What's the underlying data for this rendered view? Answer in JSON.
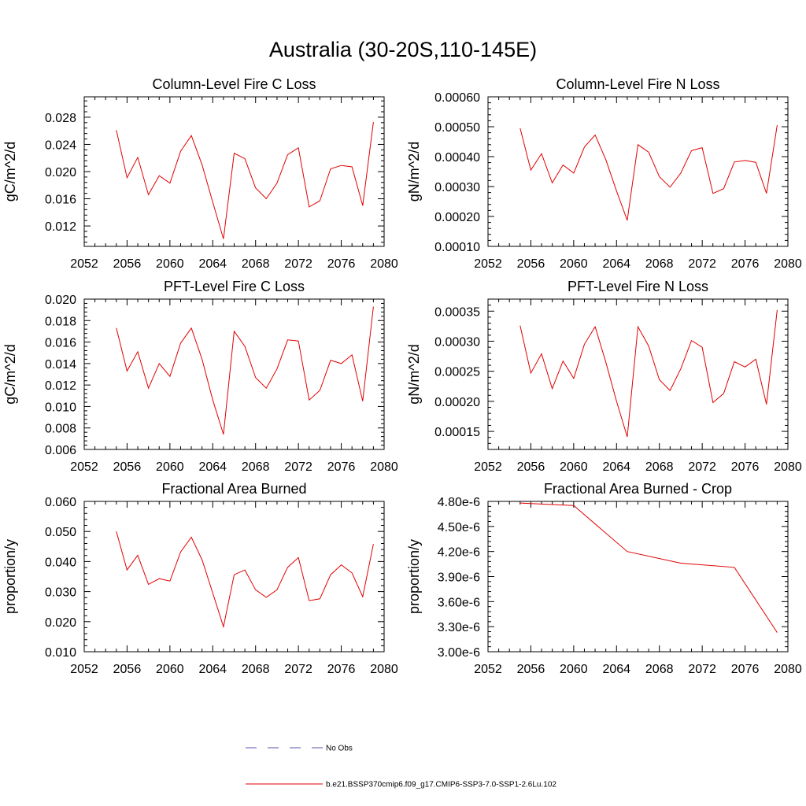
{
  "title": "Australia (30-20S,110-145E)",
  "series_color": "#e00000",
  "legend": {
    "entries": [
      {
        "label": "No Obs",
        "style": "dashed",
        "color": "#5555aa"
      },
      {
        "label": "b.e21.BSSP370cmip6.f09_g17.CMIP6-SSP3-7.0-SSP1-2.6Lu.102",
        "style": "solid",
        "color": "#e00000"
      }
    ]
  },
  "chart_data": [
    {
      "type": "line",
      "title": "Column-Level Fire C Loss",
      "ylabel": "gC/m^2/d",
      "xlim": [
        2052,
        2080
      ],
      "ylim": [
        0.009,
        0.031
      ],
      "xticks": [
        2052,
        2056,
        2060,
        2064,
        2068,
        2072,
        2076,
        2080
      ],
      "yticks": [
        0.012,
        0.016,
        0.02,
        0.024,
        0.028
      ],
      "ytick_labels": [
        "0.012",
        "0.016",
        "0.020",
        "0.024",
        "0.028"
      ],
      "x": [
        2055,
        2056,
        2057,
        2058,
        2059,
        2060,
        2061,
        2062,
        2063,
        2064,
        2065,
        2066,
        2067,
        2068,
        2069,
        2070,
        2071,
        2072,
        2073,
        2074,
        2075,
        2076,
        2077,
        2078,
        2079
      ],
      "series": [
        {
          "values": [
            0.0261,
            0.0191,
            0.0221,
            0.0166,
            0.0194,
            0.0183,
            0.023,
            0.0253,
            0.021,
            0.0155,
            0.0101,
            0.0227,
            0.0219,
            0.0176,
            0.016,
            0.0183,
            0.0225,
            0.0235,
            0.0148,
            0.0157,
            0.0204,
            0.0209,
            0.0207,
            0.015,
            0.0273
          ]
        }
      ]
    },
    {
      "type": "line",
      "title": "Column-Level Fire N Loss",
      "ylabel": "gN/m^2/d",
      "xlim": [
        2052,
        2080
      ],
      "ylim": [
        0.0001,
        0.0006
      ],
      "xticks": [
        2052,
        2056,
        2060,
        2064,
        2068,
        2072,
        2076,
        2080
      ],
      "yticks": [
        0.0001,
        0.0002,
        0.0003,
        0.0004,
        0.0005,
        0.0006
      ],
      "ytick_labels": [
        "0.00010",
        "0.00020",
        "0.00030",
        "0.00040",
        "0.00050",
        "0.00060"
      ],
      "x": [
        2055,
        2056,
        2057,
        2058,
        2059,
        2060,
        2061,
        2062,
        2063,
        2064,
        2065,
        2066,
        2067,
        2068,
        2069,
        2070,
        2071,
        2072,
        2073,
        2074,
        2075,
        2076,
        2077,
        2078,
        2079
      ],
      "series": [
        {
          "values": [
            0.000495,
            0.000355,
            0.00041,
            0.000312,
            0.000372,
            0.000345,
            0.000432,
            0.000472,
            0.00039,
            0.000285,
            0.000187,
            0.00044,
            0.000415,
            0.000333,
            0.000298,
            0.000345,
            0.00042,
            0.00043,
            0.000277,
            0.000293,
            0.000382,
            0.000387,
            0.000381,
            0.000277,
            0.000505
          ]
        }
      ]
    },
    {
      "type": "line",
      "title": "PFT-Level Fire C Loss",
      "ylabel": "gC/m^2/d",
      "xlim": [
        2052,
        2080
      ],
      "ylim": [
        0.006,
        0.02
      ],
      "xticks": [
        2052,
        2056,
        2060,
        2064,
        2068,
        2072,
        2076,
        2080
      ],
      "yticks": [
        0.006,
        0.008,
        0.01,
        0.012,
        0.014,
        0.016,
        0.018,
        0.02
      ],
      "ytick_labels": [
        "0.006",
        "0.008",
        "0.010",
        "0.012",
        "0.014",
        "0.016",
        "0.018",
        "0.020"
      ],
      "x": [
        2055,
        2056,
        2057,
        2058,
        2059,
        2060,
        2061,
        2062,
        2063,
        2064,
        2065,
        2066,
        2067,
        2068,
        2069,
        2070,
        2071,
        2072,
        2073,
        2074,
        2075,
        2076,
        2077,
        2078,
        2079
      ],
      "series": [
        {
          "values": [
            0.0173,
            0.0133,
            0.0151,
            0.0117,
            0.014,
            0.0128,
            0.0159,
            0.0173,
            0.0144,
            0.0106,
            0.0074,
            0.017,
            0.0156,
            0.0127,
            0.0117,
            0.0135,
            0.0162,
            0.0161,
            0.0106,
            0.0115,
            0.0143,
            0.014,
            0.0148,
            0.0105,
            0.0193
          ]
        }
      ]
    },
    {
      "type": "line",
      "title": "PFT-Level Fire N Loss",
      "ylabel": "gN/m^2/d",
      "xlim": [
        2052,
        2080
      ],
      "ylim": [
        0.00012,
        0.00037
      ],
      "xticks": [
        2052,
        2056,
        2060,
        2064,
        2068,
        2072,
        2076,
        2080
      ],
      "yticks": [
        0.00015,
        0.0002,
        0.00025,
        0.0003,
        0.00035
      ],
      "ytick_labels": [
        "0.00015",
        "0.00020",
        "0.00025",
        "0.00030",
        "0.00035"
      ],
      "x": [
        2055,
        2056,
        2057,
        2058,
        2059,
        2060,
        2061,
        2062,
        2063,
        2064,
        2065,
        2066,
        2067,
        2068,
        2069,
        2070,
        2071,
        2072,
        2073,
        2074,
        2075,
        2076,
        2077,
        2078,
        2079
      ],
      "series": [
        {
          "values": [
            0.000326,
            0.000247,
            0.000279,
            0.000221,
            0.000267,
            0.000238,
            0.000295,
            0.000324,
            0.000265,
            0.0002,
            0.000141,
            0.000324,
            0.000292,
            0.000236,
            0.000218,
            0.000254,
            0.000301,
            0.00029,
            0.000198,
            0.000213,
            0.000266,
            0.000257,
            0.00027,
            0.000195,
            0.000352
          ]
        }
      ]
    },
    {
      "type": "line",
      "title": "Fractional Area Burned",
      "ylabel": "proportion/y",
      "xlim": [
        2052,
        2080
      ],
      "ylim": [
        0.01,
        0.06
      ],
      "xticks": [
        2052,
        2056,
        2060,
        2064,
        2068,
        2072,
        2076,
        2080
      ],
      "yticks": [
        0.01,
        0.02,
        0.03,
        0.04,
        0.05,
        0.06
      ],
      "ytick_labels": [
        "0.010",
        "0.020",
        "0.030",
        "0.040",
        "0.050",
        "0.060"
      ],
      "x": [
        2055,
        2056,
        2057,
        2058,
        2059,
        2060,
        2061,
        2062,
        2063,
        2064,
        2065,
        2066,
        2067,
        2068,
        2069,
        2070,
        2071,
        2072,
        2073,
        2074,
        2075,
        2076,
        2077,
        2078,
        2079
      ],
      "series": [
        {
          "values": [
            0.05,
            0.0372,
            0.0421,
            0.0324,
            0.0343,
            0.0335,
            0.0432,
            0.0481,
            0.0406,
            0.0295,
            0.0183,
            0.0356,
            0.0372,
            0.0306,
            0.0281,
            0.0306,
            0.0381,
            0.0413,
            0.027,
            0.0276,
            0.0356,
            0.0389,
            0.0362,
            0.0283,
            0.0458
          ]
        }
      ]
    },
    {
      "type": "line",
      "title": "Fractional Area Burned - Crop",
      "ylabel": "proportion/y",
      "xlim": [
        2052,
        2080
      ],
      "ylim": [
        3e-06,
        4.8e-06
      ],
      "xticks": [
        2052,
        2056,
        2060,
        2064,
        2068,
        2072,
        2076,
        2080
      ],
      "yticks": [
        3e-06,
        3.3e-06,
        3.6e-06,
        3.9e-06,
        4.2e-06,
        4.5e-06,
        4.8e-06
      ],
      "ytick_labels": [
        "3.00e-6",
        "3.30e-6",
        "3.60e-6",
        "3.90e-6",
        "4.20e-6",
        "4.50e-6",
        "4.80e-6"
      ],
      "x": [
        2055,
        2060,
        2065,
        2070,
        2075,
        2079
      ],
      "series": [
        {
          "values": [
            4.78e-06,
            4.75e-06,
            4.2e-06,
            4.06e-06,
            4.01e-06,
            3.23e-06
          ]
        }
      ]
    }
  ]
}
